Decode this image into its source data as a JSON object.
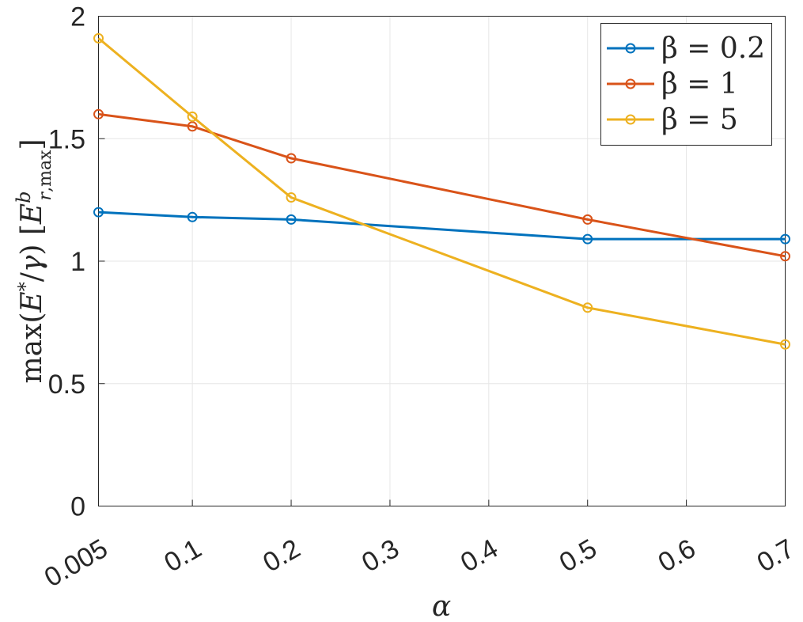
{
  "chart_data": {
    "type": "line",
    "x_ticks": [
      "0.005",
      "0.1",
      "0.2",
      "0.3",
      "0.4",
      "0.5",
      "0.6",
      "0.7"
    ],
    "y_ticks": [
      "0",
      "0.5",
      "1",
      "1.5",
      "2"
    ],
    "xlim": [
      0.005,
      0.7
    ],
    "ylim": [
      0,
      2
    ],
    "xlabel": "α",
    "ylabel": "max(E*/γ) [E^b_r,max]",
    "grid": true,
    "legend_position": "top-right",
    "series": [
      {
        "name": "β = 0.2",
        "color": "#0072BD",
        "x": [
          0.005,
          0.1,
          0.2,
          0.5,
          0.7
        ],
        "y": [
          1.2,
          1.18,
          1.17,
          1.09,
          1.09
        ]
      },
      {
        "name": "β = 1",
        "color": "#D95319",
        "x": [
          0.005,
          0.1,
          0.2,
          0.5,
          0.7
        ],
        "y": [
          1.6,
          1.55,
          1.42,
          1.17,
          1.02
        ]
      },
      {
        "name": "β = 5",
        "color": "#EDB120",
        "x": [
          0.005,
          0.1,
          0.2,
          0.5,
          0.7
        ],
        "y": [
          1.91,
          1.59,
          1.26,
          0.81,
          0.66
        ]
      }
    ]
  }
}
